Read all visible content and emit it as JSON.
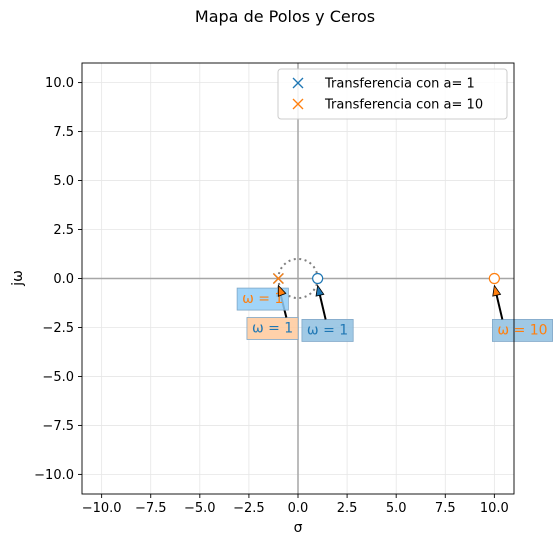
{
  "chart_data": {
    "type": "scatter",
    "title": "Mapa de Polos y Ceros",
    "xlabel": "σ",
    "ylabel": "jω",
    "xlim": [
      -11,
      11
    ],
    "ylim": [
      -11,
      11
    ],
    "xticks": [
      -10,
      -7.5,
      -5,
      -2.5,
      0,
      2.5,
      5,
      7.5,
      10
    ],
    "yticks": [
      -10,
      -7.5,
      -5,
      -2.5,
      0,
      2.5,
      5,
      7.5,
      10
    ],
    "xtick_labels": [
      "−10.0",
      "−7.5",
      "−5.0",
      "−2.5",
      "0.0",
      "2.5",
      "5.0",
      "7.5",
      "10.0"
    ],
    "ytick_labels": [
      "−10.0",
      "−7.5",
      "−5.0",
      "−2.5",
      "0.0",
      "2.5",
      "5.0",
      "7.5",
      "10.0"
    ],
    "grid": true,
    "legend_position": "top-right",
    "unit_circle": true,
    "series": [
      {
        "name": "Transferencia con a= 1",
        "color": "#1f77b4",
        "poles": [
          [
            -1,
            0
          ]
        ],
        "zeros": [
          [
            1,
            0
          ]
        ]
      },
      {
        "name": "Transferencia con a= 10",
        "color": "#ff7f0e",
        "poles": [
          [
            -1,
            0
          ]
        ],
        "zeros": [
          [
            10,
            0
          ]
        ]
      }
    ],
    "annotations": [
      {
        "id": "ann-a1-pole",
        "text": "ω = 1",
        "color": "#1f77b4",
        "box": "#ffc99b",
        "point": [
          -1,
          0
        ],
        "label_at": [
          -2.6,
          -2.5
        ]
      },
      {
        "id": "ann-a1-zero",
        "text": "ω = 1",
        "color": "#1f77b4",
        "box": "#8fbfe0",
        "point": [
          1,
          0
        ],
        "label_at": [
          0.2,
          -2.6
        ]
      },
      {
        "id": "ann-a10-pole",
        "text": "ω = 1",
        "color": "#ff7f0e",
        "box": "#91cdf7",
        "point": [
          -1,
          0
        ],
        "label_at": [
          -3.1,
          -1.0
        ]
      },
      {
        "id": "ann-a10-zero",
        "text": "ω = 10",
        "color": "#ff7f0e",
        "box": "#8fbfe0",
        "point": [
          10,
          0
        ],
        "label_at": [
          9.9,
          -2.6
        ]
      }
    ]
  }
}
